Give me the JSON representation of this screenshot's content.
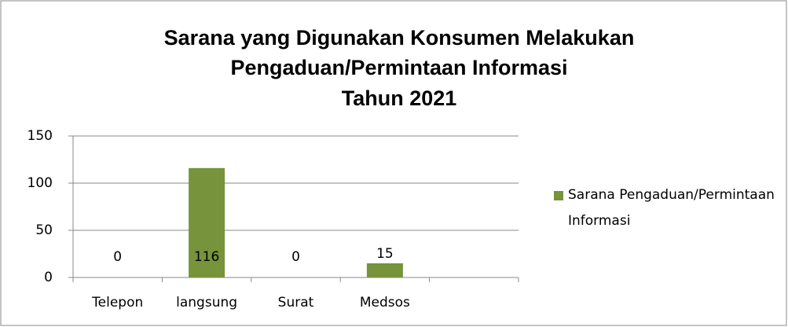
{
  "chart_data": {
    "type": "bar",
    "title": [
      "Sarana yang Digunakan Konsumen Melakukan",
      "Pengaduan/Permintaan Informasi",
      "Tahun 2021"
    ],
    "categories": [
      "Telepon",
      "langsung",
      "Surat",
      "Medsos",
      null
    ],
    "series": [
      {
        "name": "Sarana Pengaduan/Permintaan Informasi",
        "color": "#77933c",
        "values": [
          0,
          116,
          0,
          15,
          null
        ]
      }
    ],
    "ylim": [
      0,
      150
    ],
    "yticks": [
      0,
      50,
      100,
      150
    ],
    "grid": true,
    "legend": "right"
  }
}
